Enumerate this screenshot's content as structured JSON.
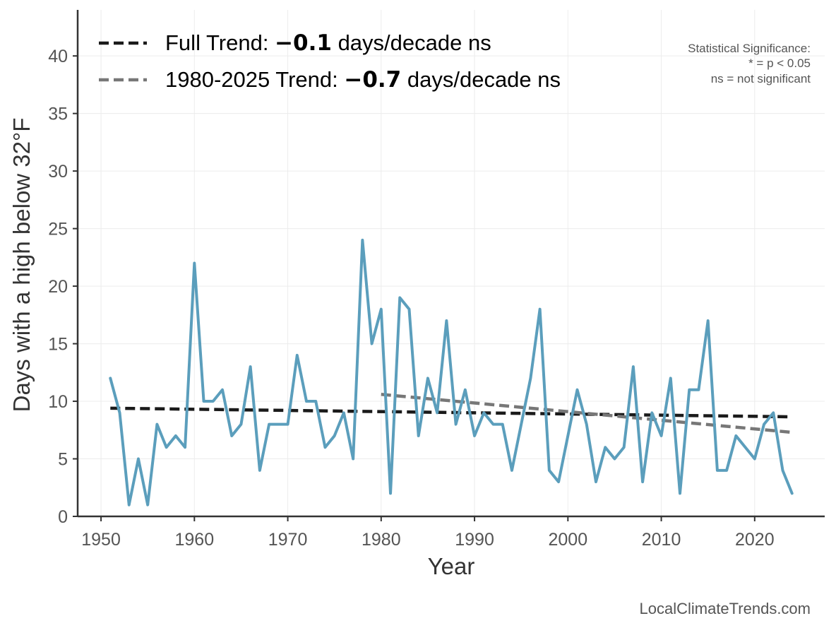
{
  "chart_data": {
    "type": "line",
    "xlabel": "Year",
    "ylabel": "Days with a high below 32°F",
    "xlim": [
      1947.5,
      2027.5
    ],
    "ylim": [
      0,
      44
    ],
    "x_ticks": [
      1950,
      1960,
      1970,
      1980,
      1990,
      2000,
      2010,
      2020
    ],
    "y_ticks": [
      0,
      5,
      10,
      15,
      20,
      25,
      30,
      35,
      40
    ],
    "grid": true,
    "series": [
      {
        "name": "Days with a high below 32°F",
        "color": "#5B9EBC",
        "x": [
          1951,
          1952,
          1953,
          1954,
          1955,
          1956,
          1957,
          1958,
          1959,
          1960,
          1961,
          1962,
          1963,
          1964,
          1965,
          1966,
          1967,
          1968,
          1969,
          1970,
          1971,
          1972,
          1973,
          1974,
          1975,
          1976,
          1977,
          1978,
          1979,
          1980,
          1981,
          1982,
          1983,
          1984,
          1985,
          1986,
          1987,
          1988,
          1989,
          1990,
          1991,
          1992,
          1993,
          1994,
          1995,
          1996,
          1997,
          1998,
          1999,
          2000,
          2001,
          2002,
          2003,
          2004,
          2005,
          2006,
          2007,
          2008,
          2009,
          2010,
          2011,
          2012,
          2013,
          2014,
          2015,
          2016,
          2017,
          2018,
          2019,
          2020,
          2021,
          2022,
          2023,
          2024
        ],
        "values": [
          12,
          9,
          1,
          5,
          1,
          8,
          6,
          7,
          6,
          22,
          10,
          10,
          11,
          7,
          8,
          13,
          4,
          8,
          8,
          8,
          14,
          10,
          10,
          6,
          7,
          9,
          5,
          24,
          15,
          18,
          2,
          19,
          18,
          7,
          12,
          9,
          17,
          8,
          11,
          7,
          9,
          8,
          8,
          4,
          8,
          12,
          18,
          4,
          3,
          7,
          11,
          8,
          3,
          6,
          5,
          6,
          13,
          3,
          9,
          7,
          12,
          2,
          11,
          11,
          17,
          4,
          4,
          7,
          6,
          5,
          8,
          9,
          4,
          2
        ]
      }
    ],
    "trends": [
      {
        "name": "Full Trend",
        "color": "#1a1a1a",
        "x": [
          1951,
          2024
        ],
        "values": [
          9.4,
          8.65
        ],
        "label_prefix": "Full Trend: ",
        "label_value": "−0.1",
        "label_suffix": " days/decade ns"
      },
      {
        "name": "1980-2025 Trend",
        "color": "#777777",
        "x": [
          1980,
          2024
        ],
        "values": [
          10.6,
          7.3
        ],
        "label_prefix": "1980-2025 Trend: ",
        "label_value": "−0.7",
        "label_suffix": " days/decade ns"
      }
    ],
    "legend_position": "top-left",
    "significance_note": {
      "title": "Statistical Significance:",
      "line1": "* = p < 0.05",
      "line2": "ns = not significant"
    },
    "watermark": "LocalClimateTrends.com"
  }
}
